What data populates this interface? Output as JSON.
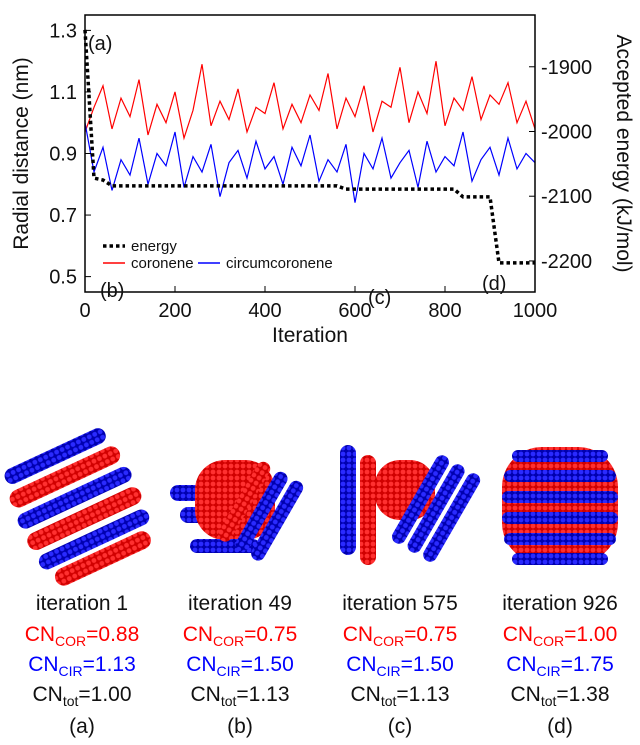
{
  "chart_data": {
    "type": "line",
    "y_label": "Radial distance (nm)",
    "y2_label": "Accepted energy (kJ/mol)",
    "x_label": "Iteration",
    "xlim": [
      0,
      1000
    ],
    "xticks": [
      0,
      200,
      400,
      600,
      800,
      1000
    ],
    "ylim": [
      0.45,
      1.35
    ],
    "yticks": [
      0.5,
      0.7,
      0.9,
      1.1,
      1.3
    ],
    "y2lim": [
      -2248,
      -1820
    ],
    "y2ticks": [
      -1900,
      -2000,
      -2100,
      -2200
    ],
    "legend": "lower left",
    "annotations": [
      "(a)",
      "(b)",
      "(c)",
      "(d)"
    ],
    "x": [
      0,
      20,
      40,
      60,
      80,
      100,
      120,
      140,
      160,
      180,
      200,
      220,
      240,
      260,
      280,
      300,
      320,
      340,
      360,
      380,
      400,
      420,
      440,
      460,
      480,
      500,
      520,
      540,
      560,
      580,
      600,
      620,
      640,
      660,
      680,
      700,
      720,
      740,
      760,
      780,
      800,
      820,
      840,
      860,
      880,
      900,
      920,
      940,
      960,
      980,
      1000
    ],
    "series": [
      {
        "name": "energy",
        "color": "#000000",
        "axis": "y2",
        "style": "dotted",
        "values": [
          -1843,
          -2072,
          -2075,
          -2084,
          -2084,
          -2084,
          -2084,
          -2084,
          -2084,
          -2084,
          -2084,
          -2084,
          -2084,
          -2084,
          -2084,
          -2084,
          -2084,
          -2084,
          -2084,
          -2084,
          -2084,
          -2084,
          -2084,
          -2084,
          -2084,
          -2084,
          -2084,
          -2084,
          -2084,
          -2089,
          -2089,
          -2089,
          -2089,
          -2089,
          -2089,
          -2089,
          -2089,
          -2089,
          -2089,
          -2089,
          -2089,
          -2089,
          -2101,
          -2101,
          -2101,
          -2101,
          -2203,
          -2203,
          -2203,
          -2203,
          -2203
        ]
      },
      {
        "name": "coronene",
        "color": "#ff0000",
        "values": [
          0.97,
          1.05,
          1.12,
          0.98,
          1.08,
          1.02,
          1.14,
          0.96,
          1.06,
          1.0,
          1.1,
          0.95,
          1.04,
          1.19,
          0.99,
          1.07,
          1.01,
          1.11,
          0.97,
          1.05,
          1.03,
          1.13,
          0.98,
          1.06,
          1.0,
          1.09,
          1.04,
          1.16,
          0.98,
          1.08,
          1.02,
          1.12,
          0.97,
          1.07,
          1.05,
          1.18,
          1.0,
          1.1,
          1.03,
          1.2,
          0.99,
          1.08,
          1.04,
          1.15,
          1.01,
          1.09,
          1.06,
          1.13,
          1.0,
          1.07,
          0.98
        ]
      },
      {
        "name": "circumcoronene",
        "color": "#0000ff",
        "values": [
          1.0,
          0.84,
          0.92,
          0.78,
          0.88,
          0.83,
          0.95,
          0.8,
          0.9,
          0.86,
          0.97,
          0.79,
          0.89,
          0.84,
          0.93,
          0.76,
          0.87,
          0.91,
          0.82,
          0.94,
          0.85,
          0.89,
          0.8,
          0.92,
          0.86,
          0.96,
          0.81,
          0.88,
          0.84,
          0.93,
          0.74,
          0.9,
          0.85,
          0.95,
          0.82,
          0.87,
          0.91,
          0.79,
          0.94,
          0.84,
          0.89,
          0.86,
          0.97,
          0.81,
          0.88,
          0.92,
          0.83,
          0.95,
          0.85,
          0.9,
          0.87
        ]
      }
    ]
  },
  "panels": [
    {
      "iteration": "iteration 1",
      "cn_cor": {
        "base": "CN",
        "sub": "COR",
        "value": "=0.88"
      },
      "cn_cir": {
        "base": "CN",
        "sub": "CIR",
        "value": "=1.13"
      },
      "cn_tot": {
        "base": "CN",
        "sub": "tot",
        "value": "=1.00"
      },
      "label": "(a)"
    },
    {
      "iteration": "iteration 49",
      "cn_cor": {
        "base": "CN",
        "sub": "COR",
        "value": "=0.75"
      },
      "cn_cir": {
        "base": "CN",
        "sub": "CIR",
        "value": "=1.50"
      },
      "cn_tot": {
        "base": "CN",
        "sub": "tot",
        "value": "=1.13"
      },
      "label": "(b)"
    },
    {
      "iteration": "iteration 575",
      "cn_cor": {
        "base": "CN",
        "sub": "COR",
        "value": "=0.75"
      },
      "cn_cir": {
        "base": "CN",
        "sub": "CIR",
        "value": "=1.50"
      },
      "cn_tot": {
        "base": "CN",
        "sub": "tot",
        "value": "=1.13"
      },
      "label": "(c)"
    },
    {
      "iteration": "iteration 926",
      "cn_cor": {
        "base": "CN",
        "sub": "COR",
        "value": "=1.00"
      },
      "cn_cir": {
        "base": "CN",
        "sub": "CIR",
        "value": "=1.75"
      },
      "cn_tot": {
        "base": "CN",
        "sub": "tot",
        "value": "=1.38"
      },
      "label": "(d)"
    }
  ]
}
